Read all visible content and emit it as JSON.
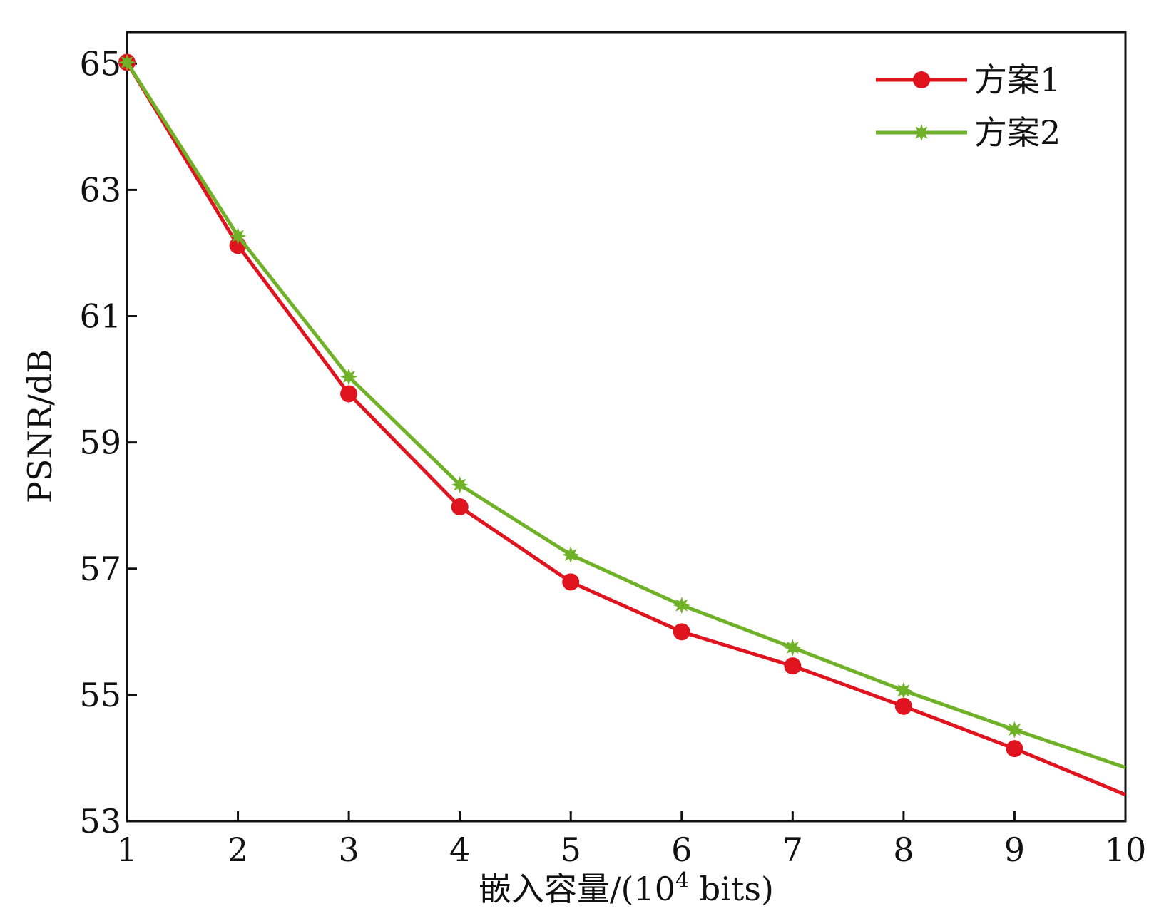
{
  "chart_data": {
    "type": "line",
    "xlabel_main": "嵌入容量/(10",
    "xlabel_sup": "4",
    "xlabel_tail": " bits)",
    "ylabel": "PSNR/dB",
    "xlim": [
      1,
      10
    ],
    "ylim": [
      53,
      65.5
    ],
    "x_ticks": [
      1,
      2,
      3,
      4,
      5,
      6,
      7,
      8,
      9,
      10
    ],
    "y_ticks": [
      53,
      55,
      57,
      59,
      61,
      63,
      65
    ],
    "grid": false,
    "legend_position": "top-right",
    "x": [
      1,
      2,
      3,
      4,
      5,
      6,
      7,
      8,
      9,
      10
    ],
    "series": [
      {
        "name": "方案1",
        "color": "#e0141e",
        "marker": "circle",
        "values": [
          65.02,
          62.12,
          59.77,
          57.98,
          56.79,
          56.0,
          55.46,
          54.82,
          54.15,
          53.42
        ]
      },
      {
        "name": "方案2",
        "color": "#6fb127",
        "marker": "star",
        "values": [
          65.02,
          62.27,
          60.04,
          58.33,
          57.22,
          56.42,
          55.75,
          55.07,
          54.45,
          53.85
        ]
      }
    ]
  }
}
